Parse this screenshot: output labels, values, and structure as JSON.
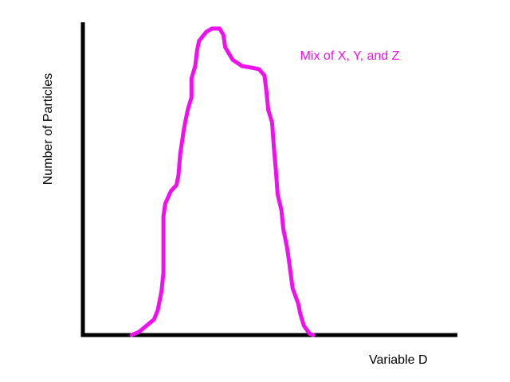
{
  "chart_data": {
    "type": "line",
    "title": "",
    "xlabel": "Variable D",
    "ylabel": "Number of Particles",
    "grid": false,
    "legend": "none",
    "xlim": [
      0,
      100
    ],
    "ylim": [
      0,
      100
    ],
    "series": [
      {
        "name": "Mix of X, Y, and Z",
        "color": "#ee11ee",
        "points": [
          [
            13,
            0
          ],
          [
            15,
            1
          ],
          [
            17,
            3
          ],
          [
            19,
            5
          ],
          [
            20,
            8
          ],
          [
            21,
            14
          ],
          [
            21.5,
            20
          ],
          [
            21.5,
            28
          ],
          [
            21.5,
            38
          ],
          [
            22,
            42
          ],
          [
            23.5,
            46
          ],
          [
            25,
            48
          ],
          [
            25.5,
            51
          ],
          [
            26,
            58
          ],
          [
            27,
            66
          ],
          [
            28,
            72
          ],
          [
            29,
            76
          ],
          [
            29,
            82
          ],
          [
            30,
            86
          ],
          [
            30.5,
            91
          ],
          [
            31,
            94
          ],
          [
            33,
            97
          ],
          [
            34.5,
            98
          ],
          [
            36.5,
            98
          ],
          [
            37.5,
            96
          ],
          [
            38,
            92
          ],
          [
            40,
            88
          ],
          [
            42.5,
            86
          ],
          [
            45,
            85.5
          ],
          [
            47,
            85
          ],
          [
            48.5,
            83
          ],
          [
            49,
            78
          ],
          [
            49.5,
            72
          ],
          [
            50.5,
            68
          ],
          [
            51,
            60
          ],
          [
            51.5,
            53
          ],
          [
            52,
            45
          ],
          [
            53,
            40
          ],
          [
            53.5,
            34
          ],
          [
            54.5,
            28
          ],
          [
            55,
            24
          ],
          [
            56,
            15
          ],
          [
            57.5,
            10
          ],
          [
            58,
            7
          ],
          [
            59,
            3
          ],
          [
            60.5,
            0.5
          ],
          [
            61.5,
            0
          ]
        ]
      }
    ],
    "annotations": [
      {
        "text": "Mix of X, Y, and Z",
        "x": 58,
        "y": 88
      }
    ]
  }
}
